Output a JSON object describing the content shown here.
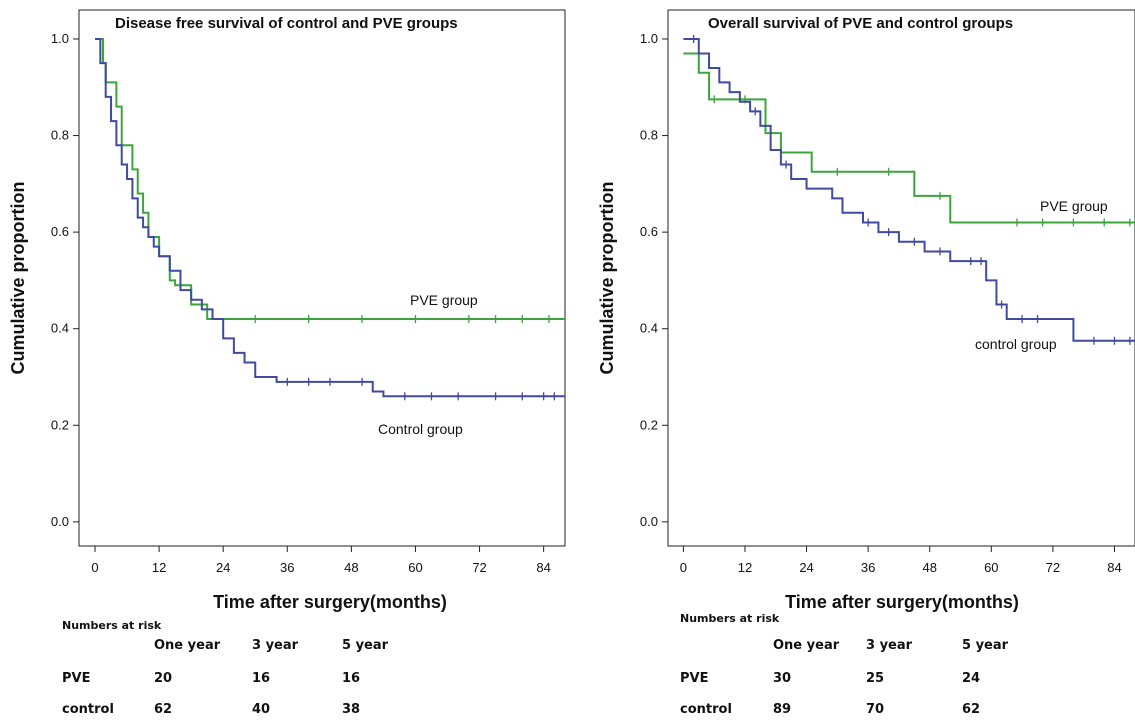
{
  "chart_data": [
    {
      "type": "line",
      "title": "Disease free survival of control and PVE groups",
      "xlabel": "Time after surgery(months)",
      "ylabel": "Cumulative proportion",
      "xlim": [
        -3,
        88
      ],
      "ylim": [
        -0.05,
        1.06
      ],
      "xticks": [
        "0",
        "12",
        "24",
        "36",
        "48",
        "60",
        "72",
        "84"
      ],
      "yticks": [
        "0.0",
        "0.2",
        "0.4",
        "0.6",
        "0.8",
        "1.0"
      ],
      "grid": false,
      "legend": "none",
      "series": [
        {
          "name": "PVE group",
          "color": "#3aa63a",
          "x": [
            0,
            1.5,
            2,
            4,
            5,
            7,
            8,
            9,
            10,
            12,
            14,
            15,
            18,
            21,
            88
          ],
          "y": [
            1.0,
            0.95,
            0.91,
            0.86,
            0.78,
            0.73,
            0.68,
            0.64,
            0.59,
            0.55,
            0.5,
            0.49,
            0.45,
            0.42,
            0.42
          ],
          "censored_x": [
            30,
            40,
            50,
            60,
            70,
            75,
            80,
            85
          ]
        },
        {
          "name": "Control group",
          "color": "#3f4aa0",
          "x": [
            0,
            1,
            2,
            3,
            4,
            5,
            6,
            7,
            8,
            9,
            10,
            11,
            12,
            14,
            16,
            18,
            20,
            22,
            24,
            26,
            28,
            30,
            34,
            52,
            54,
            88
          ],
          "y": [
            1.0,
            0.95,
            0.88,
            0.83,
            0.78,
            0.74,
            0.71,
            0.67,
            0.63,
            0.61,
            0.59,
            0.57,
            0.55,
            0.52,
            0.48,
            0.46,
            0.44,
            0.42,
            0.38,
            0.35,
            0.33,
            0.3,
            0.29,
            0.27,
            0.26,
            0.26
          ],
          "censored_x": [
            36,
            40,
            44,
            50,
            58,
            63,
            68,
            75,
            80,
            84,
            86
          ]
        }
      ]
    },
    {
      "type": "line",
      "title": "Overall survival of PVE and control groups",
      "xlabel": "Time after surgery(months)",
      "ylabel": "Cumulative proportion",
      "xlim": [
        -3,
        88
      ],
      "ylim": [
        -0.05,
        1.06
      ],
      "xticks": [
        "0",
        "12",
        "24",
        "36",
        "48",
        "60",
        "72",
        "84"
      ],
      "yticks": [
        "0.0",
        "0.2",
        "0.4",
        "0.6",
        "0.8",
        "1.0"
      ],
      "grid": false,
      "legend": "none",
      "series": [
        {
          "name": "PVE group",
          "color": "#3aa63a",
          "x": [
            0,
            3,
            5,
            16,
            19,
            25,
            45,
            52,
            88
          ],
          "y": [
            0.97,
            0.93,
            0.875,
            0.805,
            0.765,
            0.725,
            0.675,
            0.62,
            0.62
          ],
          "censored_x": [
            6,
            12,
            30,
            40,
            50,
            65,
            70,
            76,
            82,
            87
          ]
        },
        {
          "name": "control group",
          "color": "#3f4aa0",
          "x": [
            0,
            3,
            5,
            7,
            9,
            11,
            13,
            15,
            17,
            19,
            21,
            24,
            29,
            31,
            35,
            38,
            42,
            47,
            52,
            59,
            61,
            63,
            76,
            88
          ],
          "y": [
            1.0,
            0.97,
            0.94,
            0.91,
            0.89,
            0.87,
            0.85,
            0.82,
            0.77,
            0.74,
            0.71,
            0.69,
            0.67,
            0.64,
            0.62,
            0.6,
            0.58,
            0.56,
            0.54,
            0.5,
            0.45,
            0.42,
            0.375,
            0.375
          ],
          "censored_x": [
            2,
            14,
            20,
            36,
            40,
            45,
            50,
            56,
            58,
            62,
            66,
            69,
            80,
            84,
            87
          ]
        }
      ]
    }
  ],
  "risk_tables": [
    {
      "title": "Numbers at risk",
      "columns": [
        "One year",
        "3 year",
        "5 year"
      ],
      "rows": [
        {
          "label": "PVE",
          "values": [
            "20",
            "16",
            "16"
          ]
        },
        {
          "label": "control",
          "values": [
            "62",
            "40",
            "38"
          ]
        }
      ]
    },
    {
      "title": "Numbers at risk",
      "columns": [
        "One year",
        "3 year",
        "5 year"
      ],
      "rows": [
        {
          "label": "PVE",
          "values": [
            "30",
            "25",
            "24"
          ]
        },
        {
          "label": "control",
          "values": [
            "89",
            "70",
            "62"
          ]
        }
      ]
    }
  ]
}
